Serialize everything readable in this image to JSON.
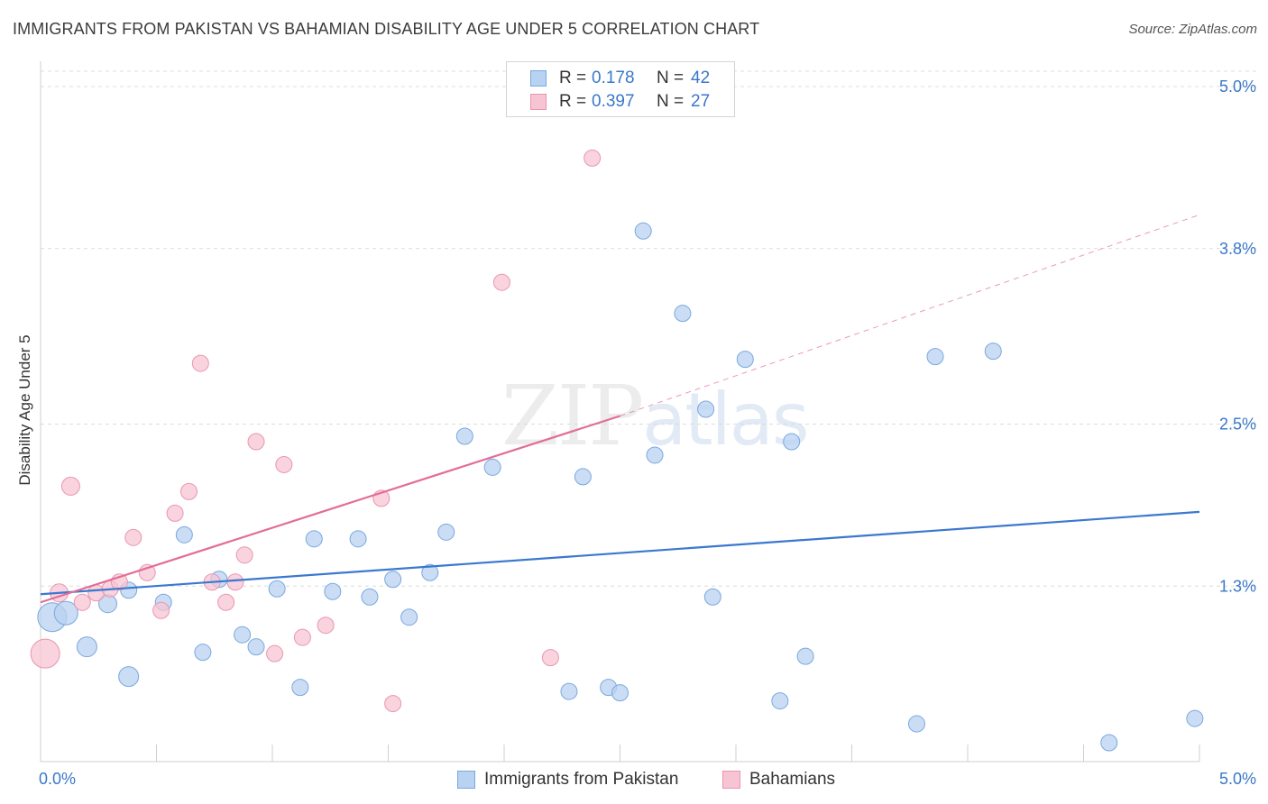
{
  "header": {
    "title": "IMMIGRANTS FROM PAKISTAN VS BAHAMIAN DISABILITY AGE UNDER 5 CORRELATION CHART",
    "source": "Source: ZipAtlas.com"
  },
  "watermark": {
    "zip": "ZIP",
    "atlas": "atlas"
  },
  "legend_top": [
    {
      "r_label": "R =",
      "r_value": "0.178",
      "n_label": "N =",
      "n_value": "42"
    },
    {
      "r_label": "R =",
      "r_value": "0.397",
      "n_label": "N =",
      "n_value": "27"
    }
  ],
  "legend_bottom": [
    {
      "label": "Immigrants from Pakistan"
    },
    {
      "label": "Bahamians"
    }
  ],
  "colors": {
    "blue_fill": "#b8d2f2",
    "blue_stroke": "#7aa8de",
    "blue_line": "#3a78d0",
    "pink_fill": "#f7c4d3",
    "pink_stroke": "#e996b1",
    "pink_line": "#e36d96",
    "tick_label": "#3a78c9",
    "grid": "#dcdcdc"
  },
  "chart_data": {
    "type": "scatter",
    "title": "IMMIGRANTS FROM PAKISTAN VS BAHAMIAN DISABILITY AGE UNDER 5 CORRELATION CHART",
    "xlabel": "",
    "ylabel": "Disability Age Under 5",
    "xlim": [
      0,
      5.0
    ],
    "ylim": [
      0,
      5.0
    ],
    "x_tick_labels": [
      "0.0%",
      "5.0%"
    ],
    "y_ticks": [
      1.3,
      2.5,
      3.8,
      5.0
    ],
    "y_tick_labels": [
      "1.3%",
      "2.5%",
      "3.8%",
      "5.0%"
    ],
    "grid": true,
    "legend_position": "top-center",
    "series": [
      {
        "name": "Immigrants from Pakistan",
        "color": "#b8d2f2",
        "points": [
          [
            0.05,
            1.07,
            16
          ],
          [
            0.11,
            1.1,
            13
          ],
          [
            0.2,
            0.85,
            11
          ],
          [
            0.29,
            1.17,
            10
          ],
          [
            0.38,
            0.63,
            11
          ],
          [
            0.38,
            1.27,
            9
          ],
          [
            0.53,
            1.18,
            9
          ],
          [
            0.62,
            1.68,
            9
          ],
          [
            0.7,
            0.81,
            9
          ],
          [
            0.77,
            1.35,
            9
          ],
          [
            0.87,
            0.94,
            9
          ],
          [
            0.93,
            0.85,
            9
          ],
          [
            1.02,
            1.28,
            9
          ],
          [
            1.12,
            0.55,
            9
          ],
          [
            1.18,
            1.65,
            9
          ],
          [
            1.26,
            1.26,
            9
          ],
          [
            1.37,
            1.65,
            9
          ],
          [
            1.42,
            1.22,
            9
          ],
          [
            1.52,
            1.35,
            9
          ],
          [
            1.59,
            1.07,
            9
          ],
          [
            1.68,
            1.4,
            9
          ],
          [
            1.75,
            1.7,
            9
          ],
          [
            1.83,
            2.41,
            9
          ],
          [
            1.95,
            2.18,
            9
          ],
          [
            2.28,
            0.52,
            9
          ],
          [
            2.34,
            2.11,
            9
          ],
          [
            2.45,
            0.55,
            9
          ],
          [
            2.5,
            0.51,
            9
          ],
          [
            2.6,
            3.93,
            9
          ],
          [
            2.65,
            2.27,
            9
          ],
          [
            2.77,
            3.32,
            9
          ],
          [
            2.87,
            2.61,
            9
          ],
          [
            2.9,
            1.22,
            9
          ],
          [
            3.04,
            2.98,
            9
          ],
          [
            3.19,
            0.45,
            9
          ],
          [
            3.24,
            2.37,
            9
          ],
          [
            3.3,
            0.78,
            9
          ],
          [
            3.78,
            0.28,
            9
          ],
          [
            3.86,
            3.0,
            9
          ],
          [
            4.11,
            3.04,
            9
          ],
          [
            4.61,
            0.14,
            9
          ],
          [
            4.98,
            0.32,
            9
          ]
        ]
      },
      {
        "name": "Bahamians",
        "color": "#f7c4d3",
        "points": [
          [
            0.02,
            0.8,
            16
          ],
          [
            0.08,
            1.25,
            10
          ],
          [
            0.13,
            2.04,
            10
          ],
          [
            0.18,
            1.18,
            9
          ],
          [
            0.24,
            1.25,
            9
          ],
          [
            0.3,
            1.28,
            9
          ],
          [
            0.34,
            1.33,
            9
          ],
          [
            0.4,
            1.66,
            9
          ],
          [
            0.46,
            1.4,
            9
          ],
          [
            0.52,
            1.12,
            9
          ],
          [
            0.58,
            1.84,
            9
          ],
          [
            0.64,
            2.0,
            9
          ],
          [
            0.69,
            2.95,
            9
          ],
          [
            0.74,
            1.33,
            9
          ],
          [
            0.8,
            1.18,
            9
          ],
          [
            0.84,
            1.33,
            9
          ],
          [
            0.88,
            1.53,
            9
          ],
          [
            0.93,
            2.37,
            9
          ],
          [
            1.01,
            0.8,
            9
          ],
          [
            1.05,
            2.2,
            9
          ],
          [
            1.13,
            0.92,
            9
          ],
          [
            1.23,
            1.01,
            9
          ],
          [
            1.47,
            1.95,
            9
          ],
          [
            1.52,
            0.43,
            9
          ],
          [
            1.99,
            3.55,
            9
          ],
          [
            2.2,
            0.77,
            9
          ],
          [
            2.38,
            4.47,
            9
          ]
        ]
      }
    ],
    "trend_lines": [
      {
        "series": "Immigrants from Pakistan",
        "from": [
          0.0,
          1.24
        ],
        "to": [
          5.0,
          1.85
        ],
        "style": "solid"
      },
      {
        "series": "Bahamians",
        "from": [
          0.0,
          1.18
        ],
        "to": [
          2.5,
          2.56
        ],
        "style": "solid"
      },
      {
        "series": "Bahamians",
        "from": [
          2.5,
          2.56
        ],
        "to": [
          5.0,
          4.05
        ],
        "style": "dashed"
      }
    ]
  }
}
